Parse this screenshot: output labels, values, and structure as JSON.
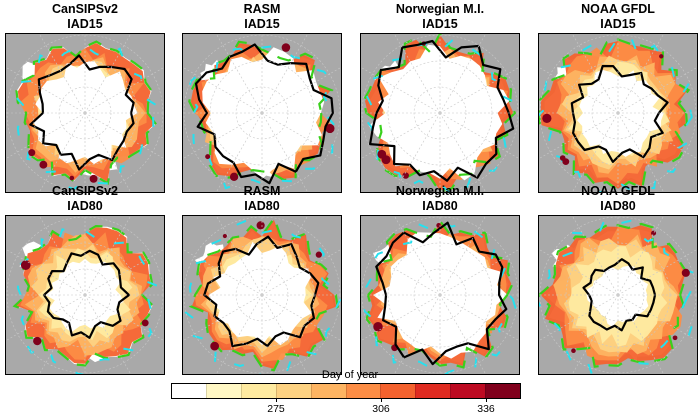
{
  "panels": [
    {
      "model": "CanSIPSv2",
      "metric": "IAD15",
      "ice_r": 0.3,
      "ring_r": 0.4,
      "has_black": true
    },
    {
      "model": "RASM",
      "metric": "IAD15",
      "ice_r": 0.37,
      "ring_r": 0.42,
      "has_black": true
    },
    {
      "model": "Norwegian M.I.",
      "metric": "IAD15",
      "ice_r": 0.4,
      "ring_r": 0.43,
      "has_black": true
    },
    {
      "model": "NOAA GFDL",
      "metric": "IAD15",
      "ice_r": 0.26,
      "ring_r": 0.43,
      "has_black": true
    },
    {
      "model": "CanSIPSv2",
      "metric": "IAD80",
      "ice_r": 0.22,
      "ring_r": 0.4,
      "has_black": true
    },
    {
      "model": "RASM",
      "metric": "IAD80",
      "ice_r": 0.3,
      "ring_r": 0.42,
      "has_black": true
    },
    {
      "model": "Norwegian M.I.",
      "metric": "IAD80",
      "ice_r": 0.38,
      "ring_r": 0.42,
      "has_black": true
    },
    {
      "model": "NOAA GFDL",
      "metric": "IAD80",
      "ice_r": 0.18,
      "ring_r": 0.43,
      "has_black": true
    }
  ],
  "colorbar": {
    "title": "Day of year",
    "colors": [
      "#ffffff",
      "#fff7c4",
      "#feeaa0",
      "#fdd282",
      "#fdb462",
      "#fc8d45",
      "#f4622e",
      "#e02b21",
      "#bd0a22",
      "#80001c"
    ],
    "ticks": [
      {
        "label": "275",
        "pos": 0.3
      },
      {
        "label": "306",
        "pos": 0.6
      },
      {
        "label": "336",
        "pos": 0.9
      }
    ]
  },
  "colors": {
    "land": "#a9a9a9",
    "grid": "#c8c8c8",
    "green": "#39d01c",
    "cyan": "#27e0ee",
    "black_contour": "#000000"
  }
}
